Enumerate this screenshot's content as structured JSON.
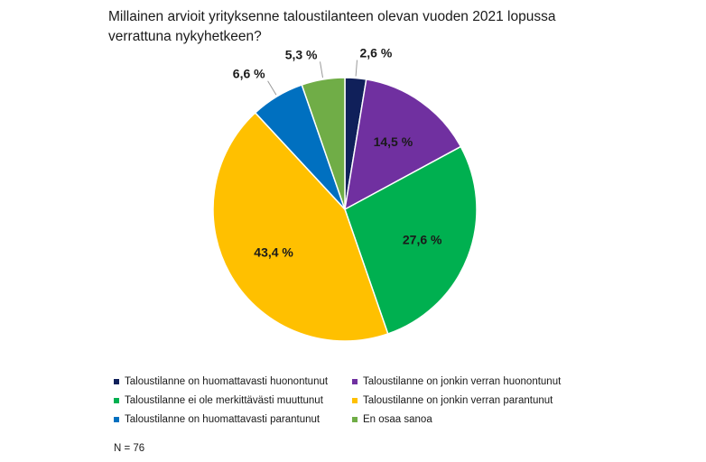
{
  "chart_data": {
    "type": "pie",
    "title": "Millainen arvioit yrityksenne taloustilanteen olevan vuoden 2021 lopussa verrattuna nykyhetkeen?",
    "slices": [
      {
        "label": "Taloustilanne on huomattavasti huonontunut",
        "value": 2.6,
        "value_label": "2,6 %",
        "color": "#10205a"
      },
      {
        "label": "Taloustilanne on jonkin verran huonontunut",
        "value": 14.5,
        "value_label": "14,5 %",
        "color": "#7030a0"
      },
      {
        "label": "Taloustilanne ei ole merkittävästi muuttunut",
        "value": 27.6,
        "value_label": "27,6 %",
        "color": "#00b050"
      },
      {
        "label": "Taloustilanne on jonkin verran parantunut",
        "value": 43.4,
        "value_label": "43,4 %",
        "color": "#ffc000"
      },
      {
        "label": "Taloustilanne on huomattavasti parantunut",
        "value": 6.6,
        "value_label": "6,6 %",
        "color": "#0070c0"
      },
      {
        "label": "En osaa sanoa",
        "value": 5.3,
        "value_label": "5,3 %",
        "color": "#70ad47"
      }
    ],
    "start": "top",
    "direction": "clockwise",
    "legend_position": "bottom",
    "note": "N = 76"
  }
}
